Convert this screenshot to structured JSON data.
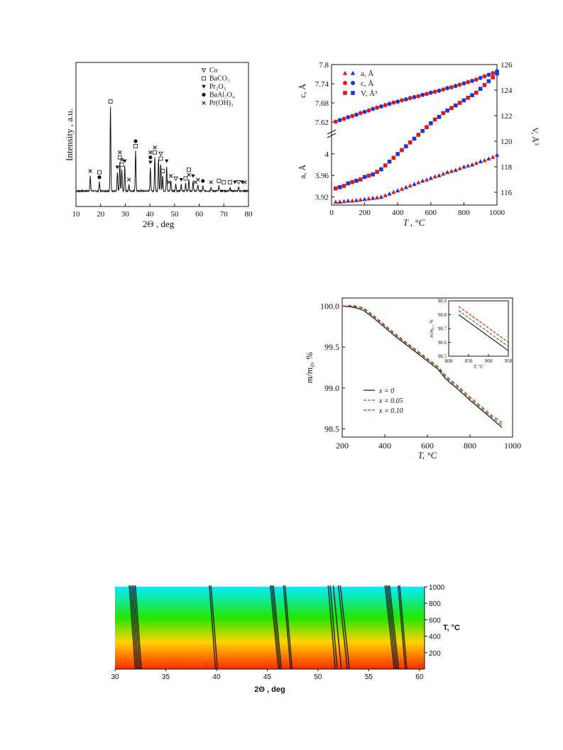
{
  "chart_data": [
    {
      "type": "line",
      "xlabel": "2Θ , deg",
      "ylabel": "Intensity , a.u.",
      "xlim": [
        10,
        80
      ],
      "xticks": [
        10,
        20,
        30,
        40,
        50,
        60,
        70,
        80
      ],
      "legend": [
        {
          "symbol": "open-triangle-down",
          "label": "Co"
        },
        {
          "symbol": "open-square",
          "label": "BaCO₃"
        },
        {
          "symbol": "filled-triangle-down",
          "label": "Pr₂O₃"
        },
        {
          "symbol": "filled-circle",
          "label": "BaAl₂O₄"
        },
        {
          "symbol": "cross",
          "label": "Pr(OH)₃"
        }
      ],
      "peaks": [
        {
          "x": 15.8,
          "h": 0.12
        },
        {
          "x": 19.5,
          "h": 0.07
        },
        {
          "x": 24.0,
          "h": 0.68
        },
        {
          "x": 26.8,
          "h": 0.15
        },
        {
          "x": 27.8,
          "h": 0.23
        },
        {
          "x": 28.6,
          "h": 0.17
        },
        {
          "x": 29.8,
          "h": 0.2
        },
        {
          "x": 31.5,
          "h": 0.05
        },
        {
          "x": 34.2,
          "h": 0.32
        },
        {
          "x": 40.2,
          "h": 0.19
        },
        {
          "x": 42.0,
          "h": 0.27
        },
        {
          "x": 43.5,
          "h": 0.25
        },
        {
          "x": 44.4,
          "h": 0.22
        },
        {
          "x": 45.2,
          "h": 0.12
        },
        {
          "x": 46.8,
          "h": 0.2
        },
        {
          "x": 48.5,
          "h": 0.08
        },
        {
          "x": 50.5,
          "h": 0.06
        },
        {
          "x": 52.7,
          "h": 0.05
        },
        {
          "x": 54.5,
          "h": 0.06
        },
        {
          "x": 55.8,
          "h": 0.09
        },
        {
          "x": 57.5,
          "h": 0.08
        },
        {
          "x": 59.5,
          "h": 0.05
        },
        {
          "x": 61.5,
          "h": 0.04
        },
        {
          "x": 64.8,
          "h": 0.03
        },
        {
          "x": 68.0,
          "h": 0.04
        },
        {
          "x": 72.5,
          "h": 0.03
        },
        {
          "x": 76.0,
          "h": 0.03
        }
      ],
      "markers": [
        {
          "x": 15.8,
          "s": "cross",
          "o": 0
        },
        {
          "x": 19.5,
          "s": "circle",
          "o": 0
        },
        {
          "x": 19.5,
          "s": "square",
          "o": 1
        },
        {
          "x": 24.0,
          "s": "square",
          "o": 0
        },
        {
          "x": 26.8,
          "s": "tri",
          "o": 0
        },
        {
          "x": 27.8,
          "s": "square",
          "o": 0
        },
        {
          "x": 27.8,
          "s": "cross",
          "o": 1
        },
        {
          "x": 28.6,
          "s": "square",
          "o": 0
        },
        {
          "x": 28.6,
          "s": "cross",
          "o": 1
        },
        {
          "x": 29.8,
          "s": "tri",
          "o": 0
        },
        {
          "x": 31.5,
          "s": "cross",
          "o": 0
        },
        {
          "x": 34.2,
          "s": "square",
          "o": 0
        },
        {
          "x": 34.2,
          "s": "circle",
          "o": 1
        },
        {
          "x": 40.2,
          "s": "tri",
          "o": 0
        },
        {
          "x": 40.2,
          "s": "circle",
          "o": 1
        },
        {
          "x": 40.2,
          "s": "cross",
          "o": 2
        },
        {
          "x": 42.0,
          "s": "square",
          "o": 0
        },
        {
          "x": 42.0,
          "s": "cross",
          "o": 1
        },
        {
          "x": 44.4,
          "s": "square",
          "o": 0
        },
        {
          "x": 44.4,
          "s": "otri",
          "o": 1
        },
        {
          "x": 45.2,
          "s": "square",
          "o": 0
        },
        {
          "x": 46.8,
          "s": "tri",
          "o": 0
        },
        {
          "x": 47.8,
          "s": "cross",
          "o": 0
        },
        {
          "x": 48.5,
          "s": "cross",
          "o": 0
        },
        {
          "x": 50.5,
          "s": "otri",
          "o": 0
        },
        {
          "x": 52.7,
          "s": "tri",
          "o": 0
        },
        {
          "x": 54.5,
          "s": "square",
          "o": 0
        },
        {
          "x": 55.8,
          "s": "cross",
          "o": 0
        },
        {
          "x": 55.8,
          "s": "square",
          "o": 1
        },
        {
          "x": 57.5,
          "s": "tri",
          "o": 0
        },
        {
          "x": 58.5,
          "s": "cross",
          "o": 0
        },
        {
          "x": 59.5,
          "s": "cross",
          "o": 0
        },
        {
          "x": 61.5,
          "s": "circle",
          "o": 0
        },
        {
          "x": 64.8,
          "s": "cross",
          "o": 0
        },
        {
          "x": 68.0,
          "s": "square",
          "o": 0
        },
        {
          "x": 70.0,
          "s": "square",
          "o": 0
        },
        {
          "x": 72.5,
          "s": "square",
          "o": 0
        },
        {
          "x": 74.5,
          "s": "tri",
          "o": 0
        },
        {
          "x": 76.0,
          "s": "otri",
          "o": 0
        },
        {
          "x": 77.5,
          "s": "tri",
          "o": 0
        },
        {
          "x": 78.5,
          "s": "cross",
          "o": 0
        }
      ]
    },
    {
      "type": "scatter",
      "xlabel": "T , °C",
      "xlim": [
        0,
        1000
      ],
      "xticks": [
        0,
        200,
        400,
        600,
        800,
        1000
      ],
      "top_axis": {
        "ylabel": "c, Å",
        "ylim": [
          7.6,
          7.8
        ],
        "yticks": [
          "7.62",
          "7.68",
          "7.74",
          "7.8"
        ]
      },
      "bottom_axis": {
        "ylabel": "a, Å",
        "ylim": [
          3.905,
          4.03
        ],
        "yticks": [
          "3.92",
          "3.96",
          "4"
        ]
      },
      "right_axis": {
        "ylabel": "V, Å³",
        "ylim": [
          115,
          126
        ],
        "yticks": [
          "116",
          "118",
          "120",
          "122",
          "124",
          "126"
        ]
      },
      "legend": [
        {
          "marker": "triangle",
          "label": "a, Å"
        },
        {
          "marker": "circle",
          "label": "c,  Å"
        },
        {
          "marker": "square",
          "label": "V, Å³"
        }
      ],
      "series": [
        {
          "name": "a, Å",
          "axis": "bottom",
          "x": [
            25,
            50,
            75,
            100,
            125,
            150,
            175,
            200,
            225,
            250,
            275,
            300,
            325,
            350,
            375,
            400,
            425,
            450,
            475,
            500,
            525,
            550,
            575,
            600,
            625,
            650,
            675,
            700,
            725,
            750,
            775,
            800,
            825,
            850,
            875,
            900,
            925,
            950,
            975,
            1000
          ],
          "y": [
            3.911,
            3.911,
            3.912,
            3.913,
            3.913,
            3.914,
            3.915,
            3.916,
            3.917,
            3.918,
            3.919,
            3.92,
            3.923,
            3.926,
            3.929,
            3.932,
            3.935,
            3.938,
            3.941,
            3.944,
            3.947,
            3.95,
            3.952,
            3.955,
            3.958,
            3.96,
            3.963,
            3.966,
            3.968,
            3.97,
            3.973,
            3.976,
            3.978,
            3.98,
            3.983,
            3.986,
            3.988,
            3.991,
            3.994,
            3.998
          ]
        },
        {
          "name": "c,  Å",
          "axis": "top",
          "x": [
            25,
            50,
            75,
            100,
            125,
            150,
            175,
            200,
            225,
            250,
            275,
            300,
            325,
            350,
            375,
            400,
            425,
            450,
            475,
            500,
            525,
            550,
            575,
            600,
            625,
            650,
            675,
            700,
            725,
            750,
            775,
            800,
            825,
            850,
            875,
            900,
            925,
            950,
            975,
            1000
          ],
          "y": [
            7.621,
            7.626,
            7.63,
            7.635,
            7.639,
            7.643,
            7.648,
            7.652,
            7.656,
            7.661,
            7.665,
            7.669,
            7.673,
            7.677,
            7.681,
            7.684,
            7.688,
            7.691,
            7.695,
            7.698,
            7.701,
            7.705,
            7.708,
            7.712,
            7.715,
            7.718,
            7.722,
            7.726,
            7.729,
            7.733,
            7.737,
            7.741,
            7.745,
            7.749,
            7.753,
            7.758,
            7.763,
            7.768,
            7.773,
            7.779
          ]
        },
        {
          "name": "V, Å³",
          "axis": "right",
          "x": [
            25,
            50,
            75,
            100,
            125,
            150,
            175,
            200,
            225,
            250,
            275,
            300,
            325,
            350,
            375,
            400,
            425,
            450,
            475,
            500,
            525,
            550,
            575,
            600,
            625,
            650,
            675,
            700,
            725,
            750,
            775,
            800,
            825,
            850,
            875,
            900,
            925,
            950,
            975,
            1000
          ],
          "y": [
            116.3,
            116.4,
            116.5,
            116.7,
            116.8,
            116.9,
            117.0,
            117.2,
            117.3,
            117.4,
            117.6,
            117.8,
            118.1,
            118.4,
            118.7,
            119.0,
            119.3,
            119.6,
            119.9,
            120.2,
            120.5,
            120.8,
            121.1,
            121.4,
            121.7,
            121.9,
            122.2,
            122.4,
            122.6,
            122.8,
            123.0,
            123.2,
            123.4,
            123.6,
            123.8,
            124.1,
            124.4,
            124.7,
            125.0,
            125.3
          ]
        }
      ]
    },
    {
      "type": "line",
      "xlabel": "T, °C",
      "ylabel": "m/m₀, %",
      "xlim": [
        200,
        1000
      ],
      "ylim": [
        98.4,
        100.1
      ],
      "xticks": [
        200,
        400,
        600,
        800,
        1000
      ],
      "yticks": [
        "98.5",
        "99.0",
        "99.5",
        "100.0"
      ],
      "legend": [
        {
          "label": "x = 0",
          "color": "#222222",
          "dash": "solid"
        },
        {
          "label": "x = 0.05",
          "color": "#2e8b2e",
          "dash": "dashed"
        },
        {
          "label": "x = 0.10",
          "color": "#e02020",
          "dash": "dashed"
        }
      ],
      "series": [
        {
          "name": "x = 0",
          "x": [
            200,
            250,
            300,
            350,
            400,
            450,
            500,
            550,
            600,
            650,
            680,
            700,
            750,
            800,
            850,
            900,
            950
          ],
          "y": [
            100.0,
            99.99,
            99.95,
            99.85,
            99.74,
            99.63,
            99.53,
            99.43,
            99.33,
            99.23,
            99.13,
            99.08,
            98.97,
            98.85,
            98.74,
            98.63,
            98.52
          ]
        },
        {
          "name": "x = 0.05",
          "x": [
            200,
            250,
            300,
            350,
            400,
            450,
            500,
            550,
            600,
            650,
            680,
            700,
            750,
            800,
            850,
            900,
            950
          ],
          "y": [
            100.0,
            100.0,
            99.97,
            99.87,
            99.76,
            99.65,
            99.55,
            99.45,
            99.35,
            99.25,
            99.15,
            99.1,
            98.99,
            98.87,
            98.76,
            98.65,
            98.55
          ]
        },
        {
          "name": "x = 0.10",
          "x": [
            200,
            250,
            300,
            350,
            400,
            450,
            500,
            550,
            600,
            650,
            680,
            700,
            750,
            800,
            850,
            900,
            950
          ],
          "y": [
            100.0,
            100.01,
            99.98,
            99.88,
            99.77,
            99.66,
            99.56,
            99.46,
            99.36,
            99.26,
            99.17,
            99.12,
            99.01,
            98.89,
            98.78,
            98.67,
            98.58
          ]
        }
      ],
      "inset": {
        "xlabel": "T, °C",
        "ylabel": "m/m₀ , %",
        "xlim": [
          800,
          950
        ],
        "ylim": [
          98.5,
          98.9
        ],
        "xticks": [
          800,
          850,
          900,
          950
        ],
        "yticks": [
          "98.5",
          "98.6",
          "98.7",
          "98.8",
          "98.9"
        ],
        "series": [
          {
            "name": "x = 0",
            "x": [
              825,
              950
            ],
            "y": [
              98.8,
              98.54
            ]
          },
          {
            "name": "x = 0.05",
            "x": [
              825,
              950
            ],
            "y": [
              98.83,
              98.57
            ]
          },
          {
            "name": "x = 0.10",
            "x": [
              825,
              950
            ],
            "y": [
              98.86,
              98.6
            ]
          }
        ]
      }
    },
    {
      "type": "heatmap",
      "xlabel": "2Θ , deg",
      "ylabel": "T, °C",
      "xlim": [
        30,
        60.5
      ],
      "ylim": [
        0,
        1000
      ],
      "xticks": [
        30,
        35,
        40,
        45,
        50,
        55,
        60
      ],
      "yticks": [
        200,
        400,
        600,
        800,
        1000
      ],
      "color_scale": [
        "#ff2a00",
        "#ffd400",
        "#24e600",
        "#00ecff"
      ],
      "lines": [
        {
          "x0": 31.4,
          "x1": 32.0
        },
        {
          "x0": 31.55,
          "x1": 32.15
        },
        {
          "x0": 31.7,
          "x1": 32.3
        },
        {
          "x0": 31.85,
          "x1": 32.45
        },
        {
          "x0": 32.0,
          "x1": 32.6
        },
        {
          "x0": 39.3,
          "x1": 39.9
        },
        {
          "x0": 39.45,
          "x1": 40.1
        },
        {
          "x0": 45.3,
          "x1": 46.1
        },
        {
          "x0": 45.45,
          "x1": 46.25
        },
        {
          "x0": 45.6,
          "x1": 46.4
        },
        {
          "x0": 46.6,
          "x1": 47.3
        },
        {
          "x0": 46.75,
          "x1": 47.45
        },
        {
          "x0": 51.0,
          "x1": 51.7
        },
        {
          "x0": 51.2,
          "x1": 51.9
        },
        {
          "x0": 51.5,
          "x1": 52.3
        },
        {
          "x0": 52.0,
          "x1": 52.9
        },
        {
          "x0": 52.2,
          "x1": 53.1
        },
        {
          "x0": 56.6,
          "x1": 57.5
        },
        {
          "x0": 56.75,
          "x1": 57.65
        },
        {
          "x0": 56.9,
          "x1": 57.8
        },
        {
          "x0": 57.05,
          "x1": 57.95
        },
        {
          "x0": 57.9,
          "x1": 58.6
        },
        {
          "x0": 58.05,
          "x1": 58.75
        }
      ]
    }
  ]
}
